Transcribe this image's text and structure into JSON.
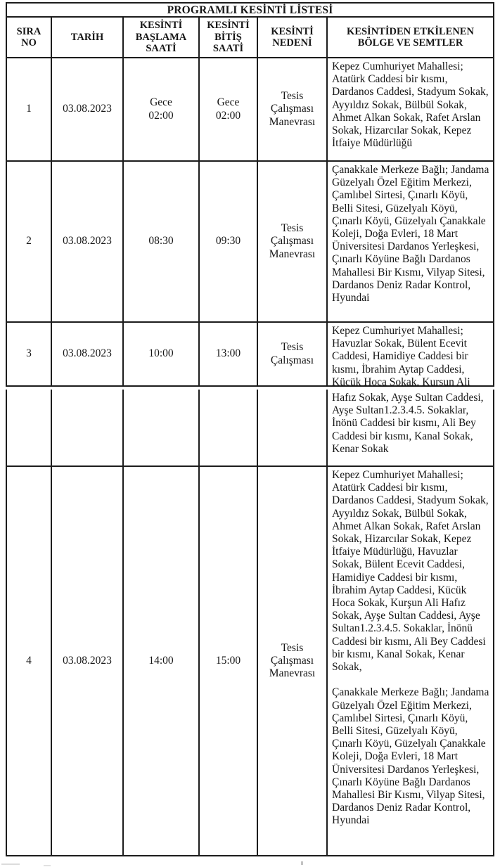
{
  "document": {
    "title": "PROGRAMLI KESİNTİ LİSTESİ"
  },
  "table": {
    "headers": [
      "SIRA\nNO",
      "TARİH",
      "KESİNTİ\nBAŞLAMA\nSAATİ",
      "KESİNTİ\nBİTİŞ\nSAATİ",
      "KESİNTİ\nNEDENİ",
      "KESİNTİDEN ETKİLENEN\nBÖLGE VE SEMTLER"
    ],
    "rows": [
      {
        "no": "1",
        "date": "03.08.2023",
        "start": "Gece\n02:00",
        "end": "Gece\n02:00",
        "reason": "Tesis\nÇalışması\nManevrası",
        "areas": "Kepez Cumhuriyet Mahallesi; Atatürk Caddesi bir kısmı, Dardanos Caddesi, Stadyum Sokak, Ayyıldız Sokak, Bülbül Sokak, Ahmet Alkan Sokak, Rafet Arslan Sokak, Hizarcılar Sokak, Kepez İtfaiye Müdürlüğü"
      },
      {
        "no": "2",
        "date": "03.08.2023",
        "start": "08:30",
        "end": "09:30",
        "reason": "Tesis\nÇalışması\nManevrası",
        "areas": "Çanakkale Merkeze Bağlı; Jandama Güzelyalı Özel Eğitim Merkezi, Çamlıbel Sirtesi, Çınarlı Köyü, Belli Sitesi, Güzelyalı Köyü, Çınarlı Köyü, Güzelyalı Çanakkale Koleji, Doğa Evleri, 18 Mart Üniversitesi Dardanos Yerleşkesi, Çınarlı Köyüne Bağlı Dardanos Mahallesi Bir Kısmı, Vilyap Sitesi, Dardanos Deniz Radar Kontrol, Hyundai"
      },
      {
        "no": "3",
        "date": "03.08.2023",
        "start": "10:00",
        "end": "13:00",
        "reason": "Tesis\nÇalışması",
        "areas": "Kepez Cumhuriyet Mahallesi; Havuzlar Sokak, Bülent Ecevit Caddesi, Hamidiye Caddesi bir kısmı, İbrahim Aytap Caddesi, Kücük Hoca Sokak, Kurşun Ali"
      },
      {
        "no": "",
        "date": "",
        "start": "",
        "end": "",
        "reason": "",
        "areas": "Hafız Sokak, Ayşe Sultan Caddesi, Ayşe Sultan1.2.3.4.5. Sokaklar, İnönü Caddesi bir kısmı, Ali Bey Caddesi bir kısmı, Kanal Sokak, Kenar Sokak"
      },
      {
        "no": "4",
        "date": "03.08.2023",
        "start": "14:00",
        "end": "15:00",
        "reason": "Tesis\nÇalışması\nManevrası",
        "areas": "Kepez Cumhuriyet Mahallesi; Atatürk Caddesi bir kısmı, Dardanos Caddesi, Stadyum Sokak, Ayyıldız Sokak, Bülbül Sokak, Ahmet Alkan Sokak, Rafet Arslan Sokak, Hizarcılar Sokak, Kepez İtfaiye Müdürlüğü, Havuzlar Sokak, Bülent Ecevit Caddesi, Hamidiye Caddesi bir kısmı, İbrahim Aytap Caddesi, Kücük Hoca Sokak, Kurşun Ali Hafız Sokak, Ayşe Sultan Caddesi, Ayşe Sultan1.2.3.4.5. Sokaklar, İnönü Caddesi bir kısmı, Ali Bey Caddesi bir kısmı, Kanal Sokak, Kenar Sokak,\n\nÇanakkale Merkeze Bağlı; Jandama Güzelyalı Özel Eğitim Merkezi, Çamlıbel Sirtesi, Çınarlı Köyü, Belli Sitesi, Güzelyalı Köyü, Çınarlı Köyü, Güzelyalı Çanakkale Koleji, Doğa Evleri, 18 Mart Üniversitesi Dardanos Yerleşkesi, Çınarlı Köyüne Bağlı Dardanos Mahallesi Bir Kısmı, Vilyap Sitesi, Dardanos Deniz Radar Kontrol, Hyundai"
      }
    ]
  },
  "colors": {
    "ink": "#1c1c1c",
    "paper": "#ffffff"
  }
}
